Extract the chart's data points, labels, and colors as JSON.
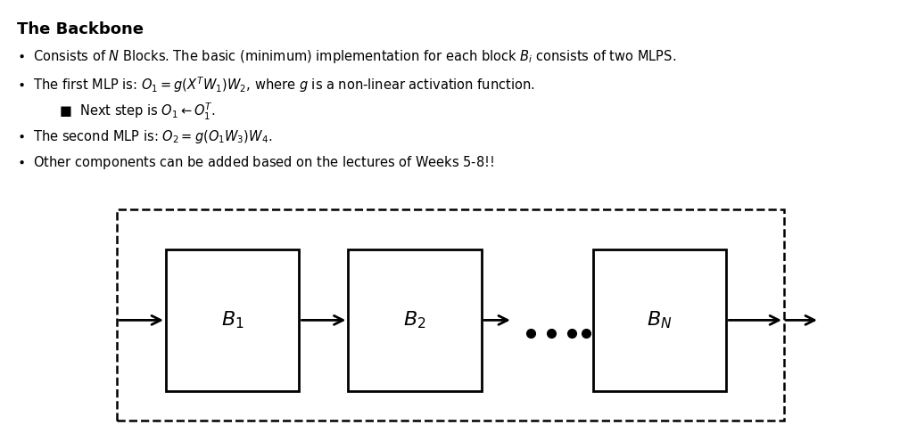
{
  "title": "The Backbone",
  "bullet1": "Consists of $N$ Blocks. The basic (minimum) implementation for each block $B_i$ consists of two MLPS.",
  "bullet2": "The first MLP is: $O_1 = g(X^TW_1)W_2$, where $g$ is a non-linear activation function.",
  "subbullet": "Next step is $O_1 \\leftarrow O_1^T$.",
  "bullet3": "The second MLP is: $O_2 = g(O_1W_3)W_4$.",
  "bullet4": "Other components can be added based on the lectures of Weeks 5-8!!",
  "bg_color": "#ffffff",
  "text_color": "#000000",
  "box_color": "#000000",
  "dashed_box_color": "#000000"
}
